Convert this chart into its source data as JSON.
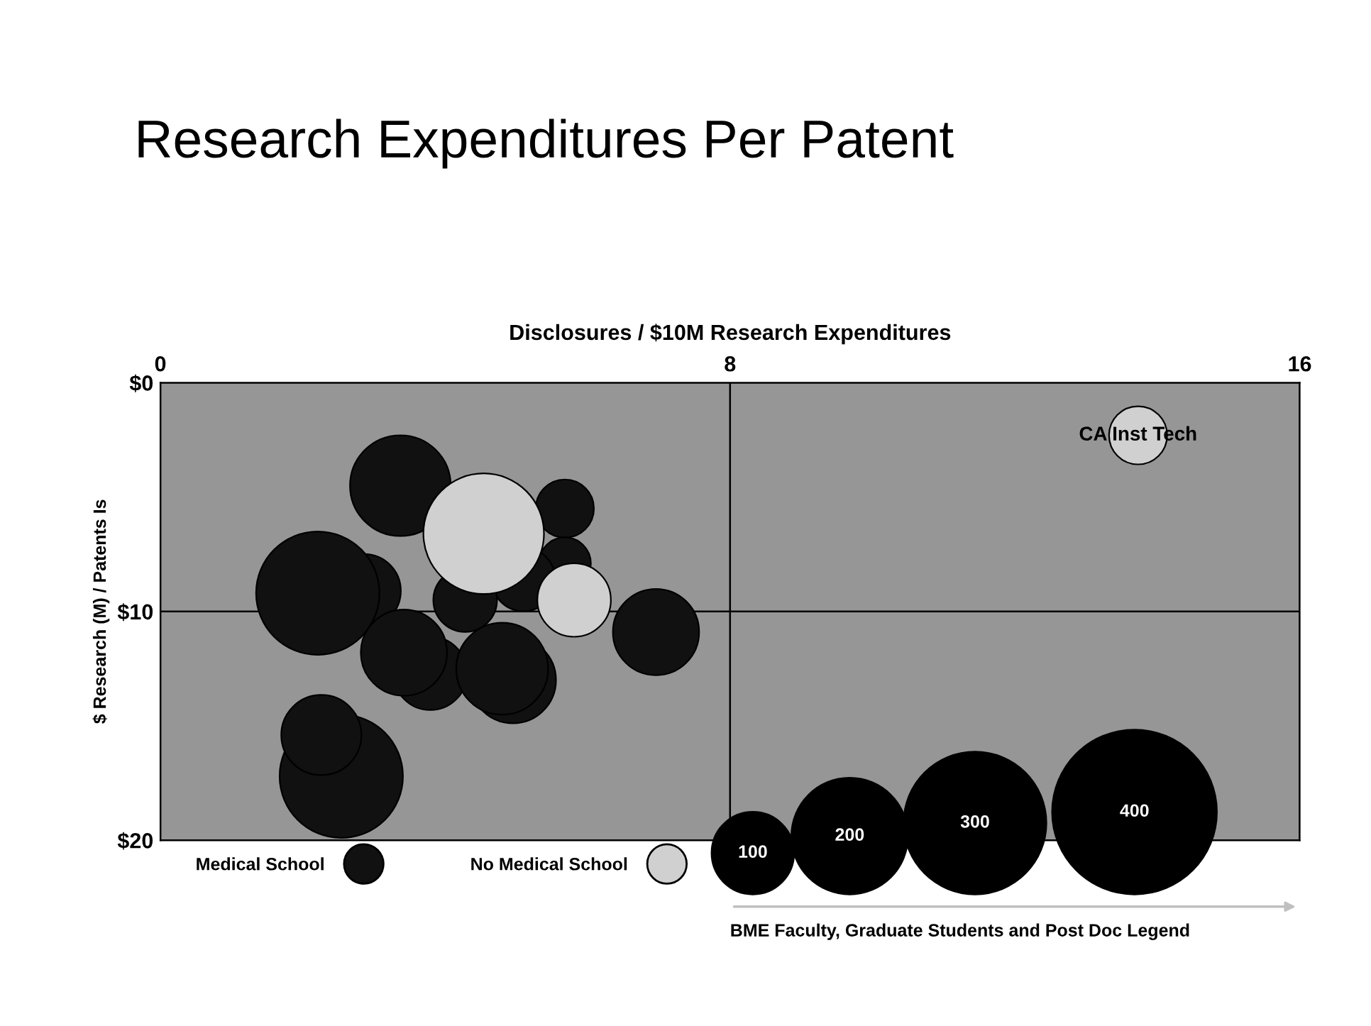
{
  "chart_data": {
    "type": "bubble",
    "title": "Research Expenditures Per Patent",
    "xlabel": "Disclosures / $10M Research Expenditures",
    "ylabel": "$ Research (M) / Patents Is",
    "xlim": [
      0,
      16
    ],
    "xticks": [
      0,
      8,
      16
    ],
    "ylim": [
      20,
      0
    ],
    "yticks": [
      {
        "value": 0,
        "label": "$0"
      },
      {
        "value": 10,
        "label": "$10"
      },
      {
        "value": 20,
        "label": "$20"
      }
    ],
    "grid": true,
    "legend": "bottom",
    "size_legend": [
      100,
      200,
      300,
      400
    ],
    "series": [
      {
        "name": "Medical School",
        "color": "#111111",
        "x": [
          3.37,
          5.68,
          5.68,
          5.1,
          4.28,
          2.86,
          2.21,
          6.96,
          3.79,
          3.42,
          4.95,
          4.8,
          2.54,
          2.26
        ],
        "values": [
          4.5,
          5.5,
          7.9,
          8.6,
          9.5,
          9.1,
          9.2,
          10.9,
          12.7,
          11.8,
          13.0,
          12.5,
          17.2,
          15.4
        ],
        "sizes": [
          150,
          50,
          40,
          60,
          60,
          80,
          225,
          110,
          80,
          110,
          110,
          125,
          225,
          95
        ]
      },
      {
        "name": "No Medical School",
        "color": "#d0d0d0",
        "x": [
          4.54,
          5.81,
          13.73
        ],
        "values": [
          6.6,
          9.5,
          2.3
        ],
        "sizes": [
          215,
          80,
          50
        ]
      }
    ],
    "annotations": [
      {
        "text": "CA Inst Tech",
        "x": 13.73,
        "y": 2.3
      },
      "BME Faculty, Graduate Students and Post Doc Legend"
    ]
  }
}
